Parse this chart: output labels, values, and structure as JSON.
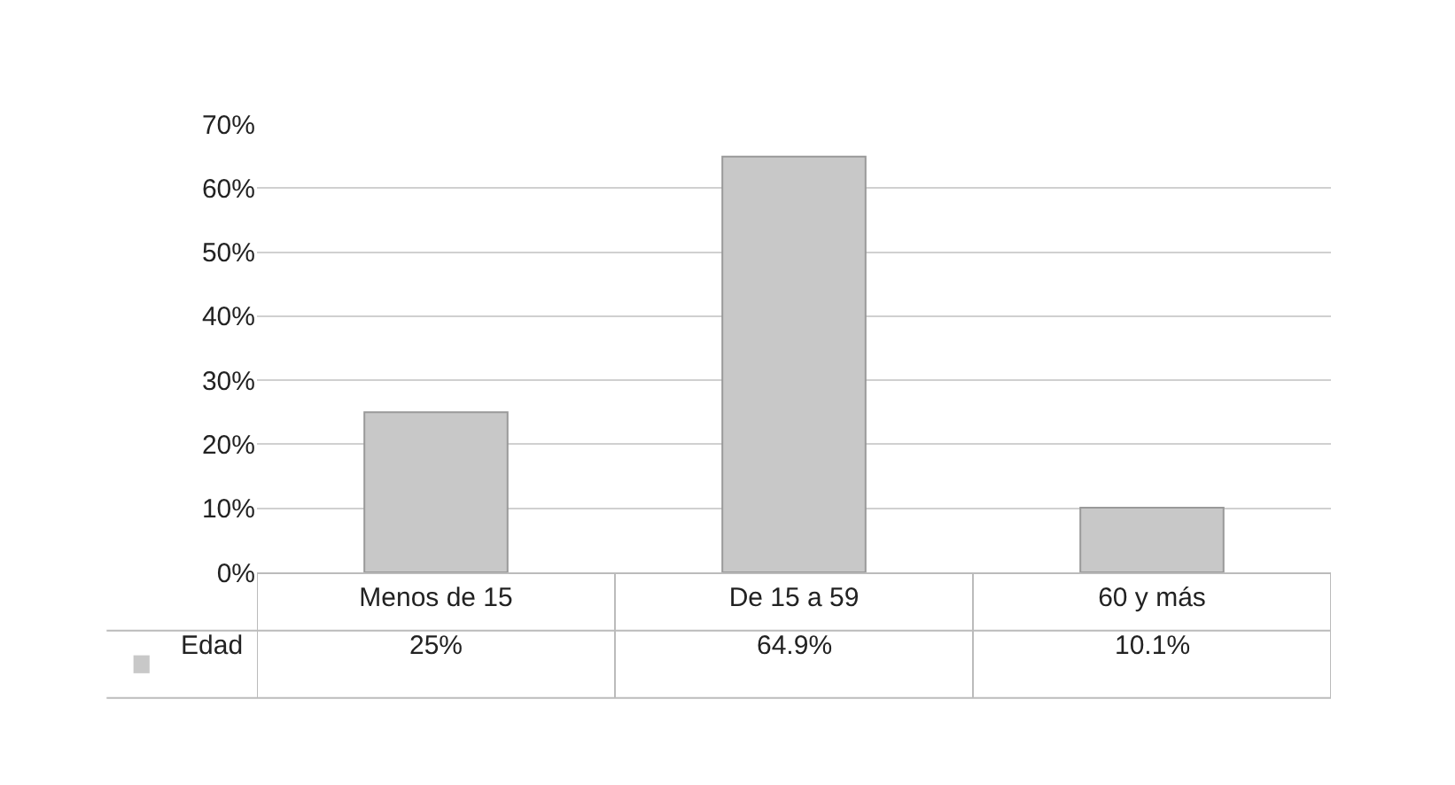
{
  "chart_data": {
    "type": "bar",
    "categories": [
      "Menos de 15",
      "De 15 a 59",
      "60 y más"
    ],
    "series": [
      {
        "name": "Edad",
        "color": "#c8c8c8",
        "values": [
          25,
          64.9,
          10.1
        ],
        "value_labels": [
          "25%",
          "64.9%",
          "10.1%"
        ]
      }
    ],
    "ylim": [
      0,
      70
    ],
    "yticks": [
      {
        "value": 0,
        "label": "0%"
      },
      {
        "value": 10,
        "label": "10%"
      },
      {
        "value": 20,
        "label": "20%"
      },
      {
        "value": 30,
        "label": "30%"
      },
      {
        "value": 40,
        "label": "40%"
      },
      {
        "value": 50,
        "label": "50%"
      },
      {
        "value": 60,
        "label": "60%"
      },
      {
        "value": 70,
        "label": "70%"
      }
    ],
    "grid": "y",
    "legend": "bottom left"
  }
}
